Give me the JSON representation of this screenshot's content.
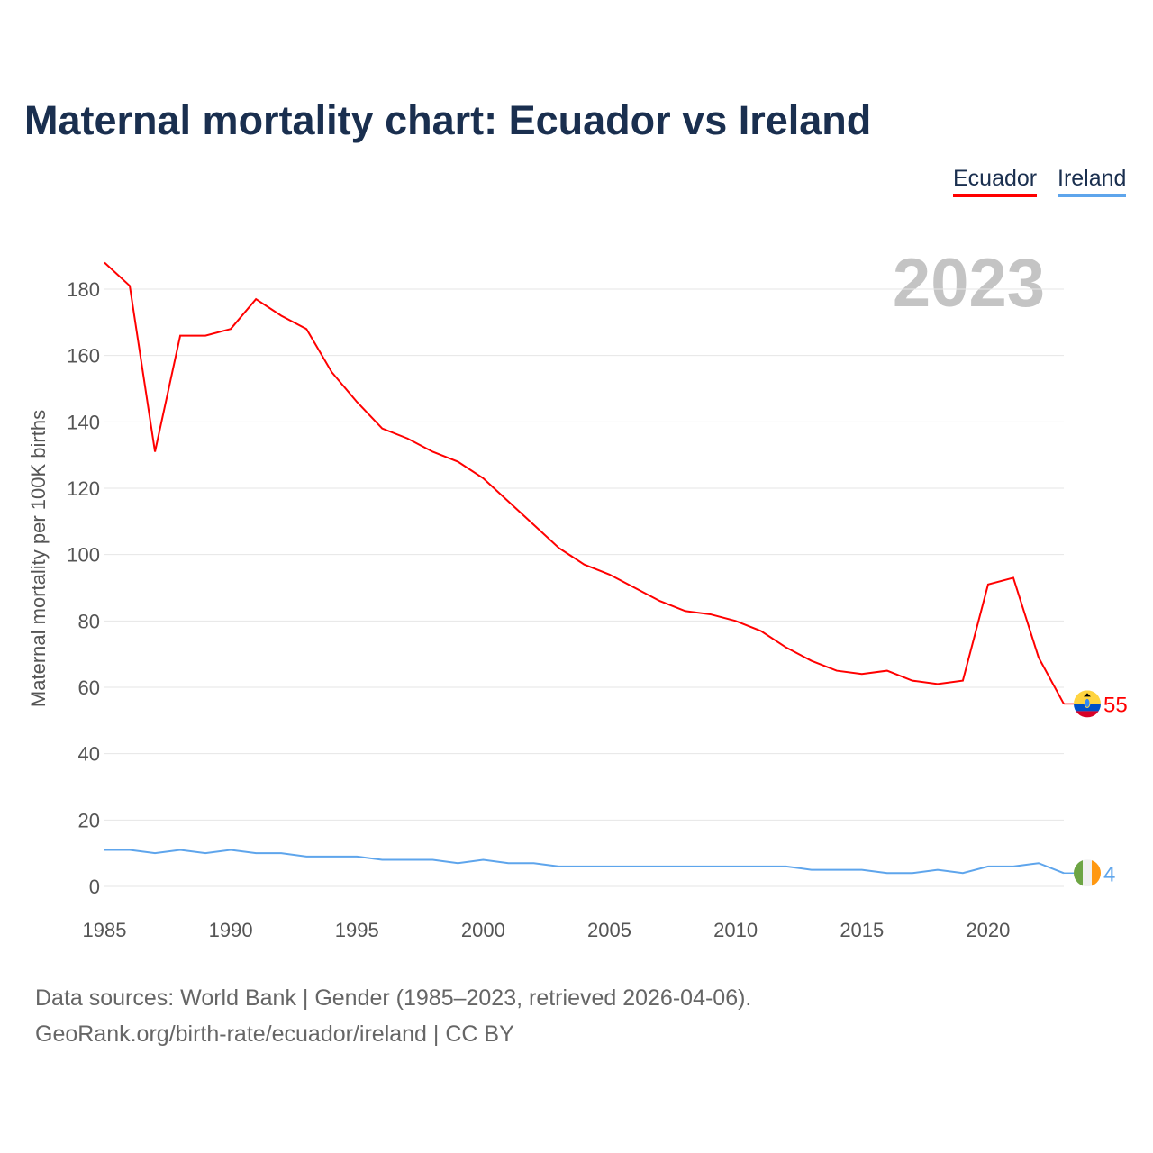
{
  "title": "Maternal mortality chart: Ecuador vs Ireland",
  "year_label": "2023",
  "footer": {
    "line1": "Data sources: World Bank | Gender (1985–2023, retrieved 2026-04-06).",
    "line2": "GeoRank.org/birth-rate/ecuador/ireland | CC BY"
  },
  "chart_data": {
    "type": "line",
    "title": "Maternal mortality chart: Ecuador vs Ireland",
    "xlabel": "",
    "ylabel": "Maternal mortality per 100K births",
    "xlim": [
      1985,
      2023
    ],
    "ylim": [
      0,
      190
    ],
    "x_ticks": [
      "1985",
      "1990",
      "1995",
      "2000",
      "2005",
      "2010",
      "2015",
      "2020"
    ],
    "y_ticks": [
      "0",
      "20",
      "40",
      "60",
      "80",
      "100",
      "120",
      "140",
      "160",
      "180"
    ],
    "grid": true,
    "legend_placement": "top-right",
    "x": [
      1985,
      1986,
      1987,
      1988,
      1989,
      1990,
      1991,
      1992,
      1993,
      1994,
      1995,
      1996,
      1997,
      1998,
      1999,
      2000,
      2001,
      2002,
      2003,
      2004,
      2005,
      2006,
      2007,
      2008,
      2009,
      2010,
      2011,
      2012,
      2013,
      2014,
      2015,
      2016,
      2017,
      2018,
      2019,
      2020,
      2021,
      2022,
      2023
    ],
    "series": [
      {
        "name": "Ecuador",
        "color": "#ff0000",
        "end_label": "55",
        "values": [
          188,
          181,
          131,
          166,
          166,
          168,
          177,
          172,
          168,
          155,
          146,
          138,
          135,
          131,
          128,
          123,
          116,
          109,
          102,
          97,
          94,
          90,
          86,
          83,
          82,
          80,
          77,
          72,
          68,
          65,
          64,
          65,
          62,
          61,
          62,
          91,
          93,
          69,
          55
        ]
      },
      {
        "name": "Ireland",
        "color": "#5ea5ec",
        "end_label": "4",
        "values": [
          11,
          11,
          10,
          11,
          10,
          11,
          10,
          10,
          9,
          9,
          9,
          8,
          8,
          8,
          7,
          8,
          7,
          7,
          6,
          6,
          6,
          6,
          6,
          6,
          6,
          6,
          6,
          6,
          5,
          5,
          5,
          4,
          4,
          5,
          4,
          6,
          6,
          7,
          4
        ]
      }
    ]
  }
}
